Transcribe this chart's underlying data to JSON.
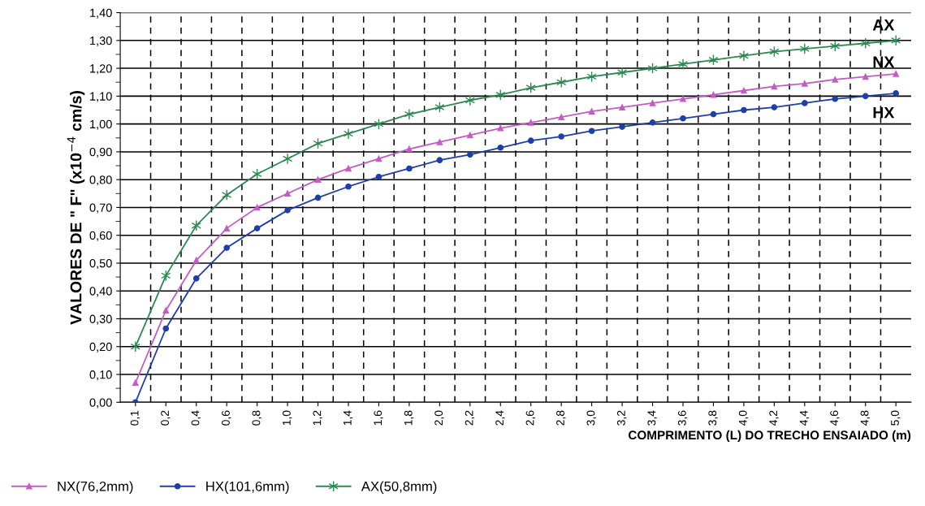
{
  "chart_data": {
    "type": "line",
    "xlabel": "COMPRIMENTO (L) DO TRECHO ENSAIADO (m)",
    "ylabel": "VALORES DE \" F\" (x10$^{−4}$ cm/s)",
    "categories": [
      "0,1",
      "0,2",
      "0,4",
      "0,6",
      "0,8",
      "1,0",
      "1,2",
      "1,4",
      "1,6",
      "1,8",
      "2,0",
      "2,2",
      "2,4",
      "2,6",
      "2,8",
      "3,0",
      "3,2",
      "3,4",
      "3,6",
      "3,8",
      "4,0",
      "4,2",
      "4,4",
      "4,6",
      "4,8",
      "5,0"
    ],
    "series": [
      {
        "name": "NX(76,2mm)",
        "color": "#c45cc4",
        "marker": "triangle",
        "values": [
          0.07,
          0.33,
          0.51,
          0.625,
          0.7,
          0.75,
          0.8,
          0.84,
          0.875,
          0.91,
          0.935,
          0.96,
          0.985,
          1.005,
          1.025,
          1.045,
          1.06,
          1.075,
          1.09,
          1.105,
          1.12,
          1.135,
          1.145,
          1.16,
          1.17,
          1.18
        ]
      },
      {
        "name": "HX(101,6mm)",
        "color": "#1f3fa8",
        "marker": "circle",
        "values": [
          0.0,
          0.265,
          0.445,
          0.555,
          0.625,
          0.69,
          0.735,
          0.775,
          0.81,
          0.84,
          0.87,
          0.89,
          0.915,
          0.94,
          0.955,
          0.975,
          0.99,
          1.005,
          1.02,
          1.035,
          1.05,
          1.06,
          1.075,
          1.09,
          1.1,
          1.11
        ]
      },
      {
        "name": "AX(50,8mm)",
        "color": "#2a8a50",
        "marker": "cross",
        "values": [
          0.2,
          0.455,
          0.635,
          0.745,
          0.82,
          0.875,
          0.93,
          0.965,
          1.0,
          1.035,
          1.06,
          1.085,
          1.105,
          1.13,
          1.15,
          1.17,
          1.185,
          1.2,
          1.215,
          1.23,
          1.245,
          1.26,
          1.27,
          1.28,
          1.29,
          1.3
        ]
      }
    ],
    "ylim": [
      0,
      1.4
    ],
    "yticks": [
      {
        "value": 0,
        "label": "0,00"
      },
      {
        "value": 0.1,
        "label": "0,10"
      },
      {
        "value": 0.2,
        "label": "0,20"
      },
      {
        "value": 0.3,
        "label": "0,30"
      },
      {
        "value": 0.4,
        "label": "0,40"
      },
      {
        "value": 0.5,
        "label": "0,50"
      },
      {
        "value": 0.6,
        "label": "0,60"
      },
      {
        "value": 0.7,
        "label": "0,70"
      },
      {
        "value": 0.8,
        "label": "0,80"
      },
      {
        "value": 0.9,
        "label": "0,90"
      },
      {
        "value": 1.0,
        "label": "1,00"
      },
      {
        "value": 1.1,
        "label": "1,10"
      },
      {
        "value": 1.2,
        "label": "1,20"
      },
      {
        "value": 1.3,
        "label": "1,30"
      },
      {
        "value": 1.4,
        "label": "1,40"
      }
    ],
    "annotations": [
      "AX",
      "NX",
      "HX"
    ],
    "grid": true,
    "legend": "bottom left",
    "line_style": "solid"
  }
}
